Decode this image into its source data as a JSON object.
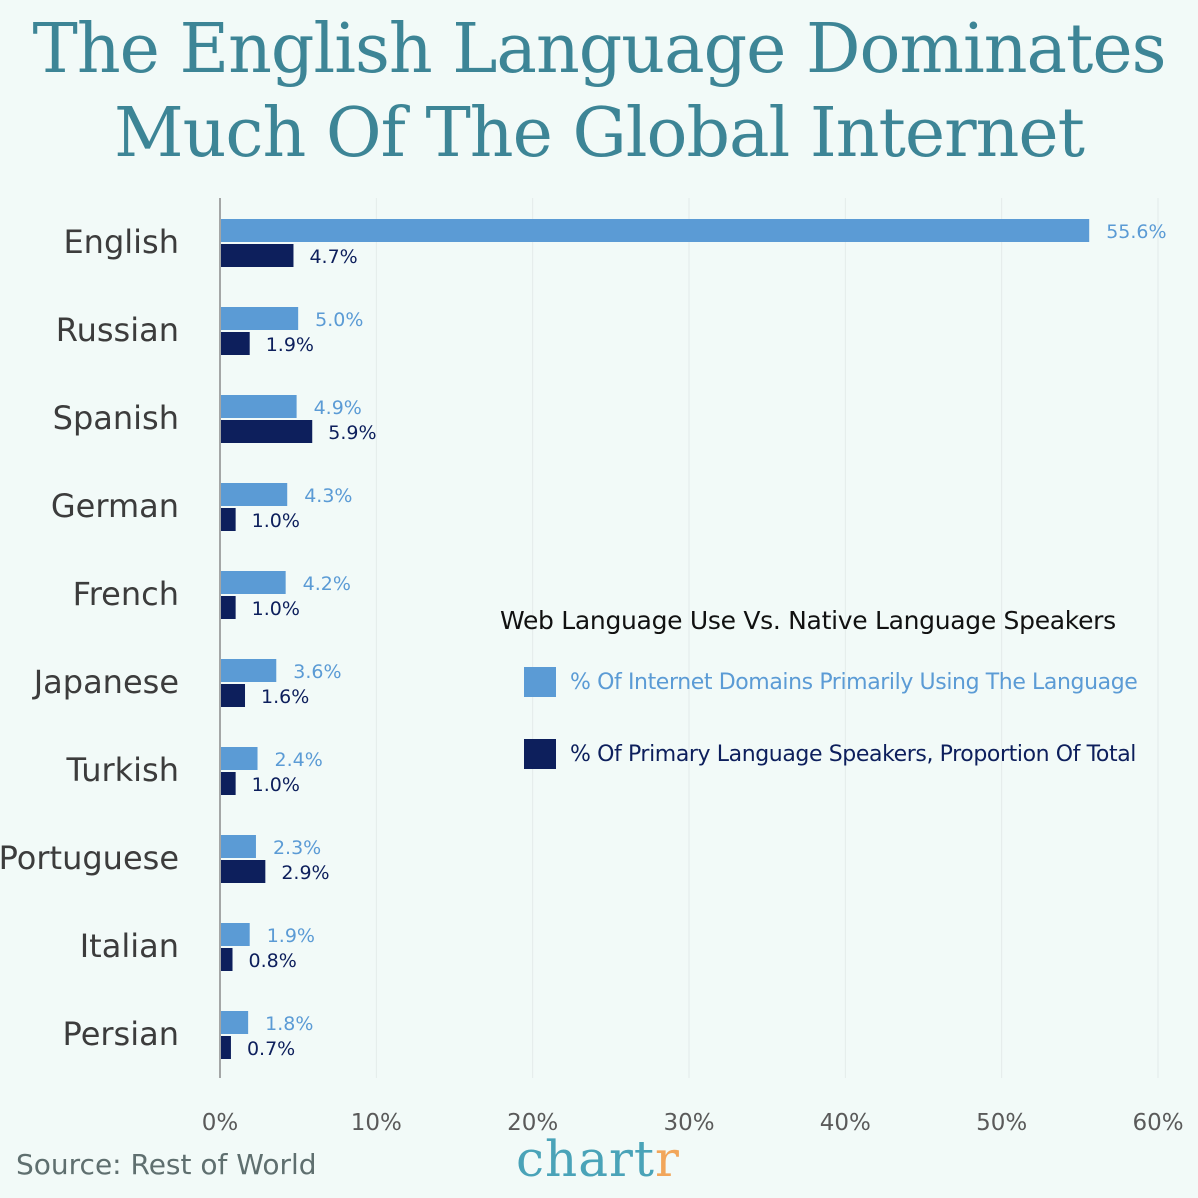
{
  "title_line1": "The English Language Dominates",
  "title_line2": "Much Of The Global Internet",
  "legend": {
    "title": "Web Language Use Vs. Native Language Speakers",
    "items": [
      {
        "label": "% Of Internet Domains Primarily Using The Language",
        "color": "#5b9bd5"
      },
      {
        "label": "% Of Primary Language Speakers, Proportion Of Total",
        "color": "#0d1f5c"
      }
    ]
  },
  "source": "Source: Rest of World",
  "brand": {
    "main": "chart",
    "accent": "r"
  },
  "chart_data": {
    "type": "bar",
    "orientation": "horizontal",
    "categories": [
      "English",
      "Russian",
      "Spanish",
      "German",
      "French",
      "Japanese",
      "Turkish",
      "Portuguese",
      "Italian",
      "Persian"
    ],
    "series": [
      {
        "name": "% Of Internet Domains Primarily Using The Language",
        "color": "#5b9bd5",
        "values": [
          55.6,
          5.0,
          4.9,
          4.3,
          4.2,
          3.6,
          2.4,
          2.3,
          1.9,
          1.8
        ],
        "labels": [
          "55.6%",
          "5.0%",
          "4.9%",
          "4.3%",
          "4.2%",
          "3.6%",
          "2.4%",
          "2.3%",
          "1.9%",
          "1.8%"
        ]
      },
      {
        "name": "% Of Primary Language Speakers, Proportion Of Total",
        "color": "#0d1f5c",
        "values": [
          4.7,
          1.9,
          5.9,
          1.0,
          1.0,
          1.6,
          1.0,
          2.9,
          0.8,
          0.7
        ],
        "labels": [
          "4.7%",
          "1.9%",
          "5.9%",
          "1.0%",
          "1.0%",
          "1.6%",
          "1.0%",
          "2.9%",
          "0.8%",
          "0.7%"
        ]
      }
    ],
    "xlim": [
      0,
      60
    ],
    "xticks": [
      0,
      10,
      20,
      30,
      40,
      50,
      60
    ],
    "xtick_labels": [
      "0%",
      "10%",
      "20%",
      "30%",
      "40%",
      "50%",
      "60%"
    ],
    "grid": "vertical"
  }
}
